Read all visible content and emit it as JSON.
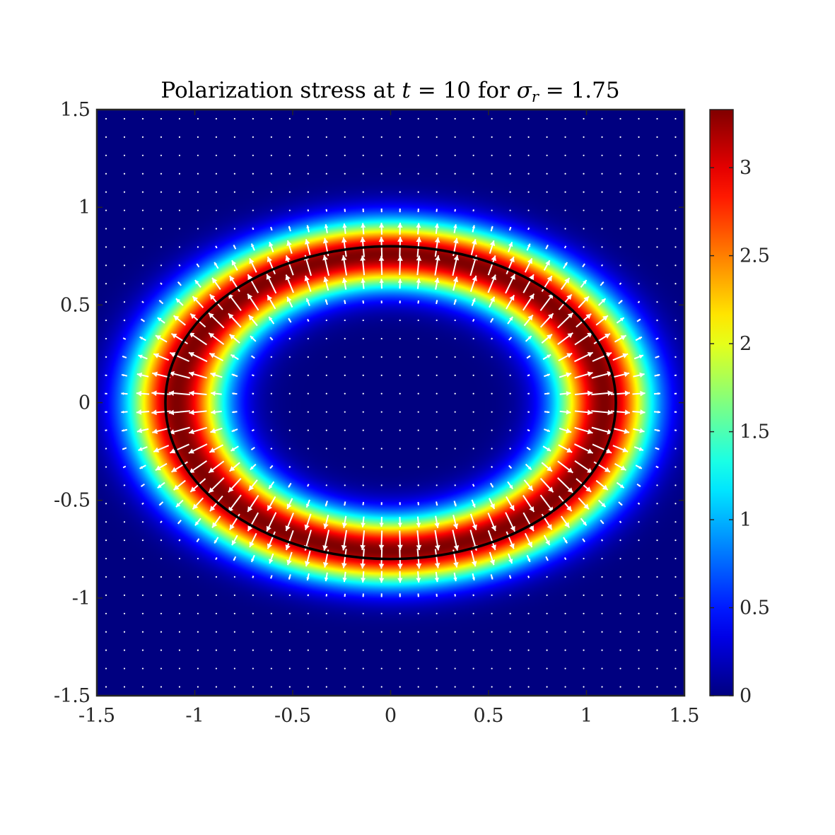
{
  "chart_data": {
    "type": "heatmap",
    "title": {
      "prefix": "Polarization stress at ",
      "t_symbol": "t",
      "t_value": " = 10 for ",
      "sigma_symbol": "σ",
      "sigma_sub": "r",
      "sigma_value": " = 1.75"
    },
    "xlim": [
      -1.5,
      1.5
    ],
    "ylim": [
      -1.5,
      1.5
    ],
    "x_ticks": [
      -1.5,
      -1,
      -0.5,
      0,
      0.5,
      1,
      1.5
    ],
    "x_tick_labels": [
      "-1.5",
      "-1",
      "-0.5",
      "0",
      "0.5",
      "1",
      "1.5"
    ],
    "y_ticks": [
      1.5,
      1,
      0.5,
      0,
      -0.5,
      -1,
      -1.5
    ],
    "y_tick_labels": [
      "1.5",
      "1",
      "0.5",
      "0",
      "-0.5",
      "-1",
      "-1.5"
    ],
    "colormap": "jet",
    "clim": [
      0,
      3.33
    ],
    "colorbar_ticks": [
      0,
      0.5,
      1,
      1.5,
      2,
      2.5,
      3
    ],
    "colorbar_tick_labels": [
      "0",
      "0.5",
      "1",
      "1.5",
      "2",
      "2.5",
      "3"
    ],
    "field": {
      "description_free": true,
      "ellipse_semi_axis_x": 1.15,
      "ellipse_semi_axis_y": 0.8,
      "peak_value": 3.33,
      "peak_offset_inside": 0.05,
      "band_width": 0.12
    },
    "interface_curve": {
      "shape": "ellipse",
      "center": [
        0,
        0
      ],
      "semi_axis_x": 1.15,
      "semi_axis_y": 0.8,
      "color": "#000000"
    },
    "quiver": {
      "grid_spacing": 0.0938,
      "arrow_color": "#ffffff",
      "direction": "outward-normal",
      "max_length": 0.11
    },
    "grid": false
  }
}
